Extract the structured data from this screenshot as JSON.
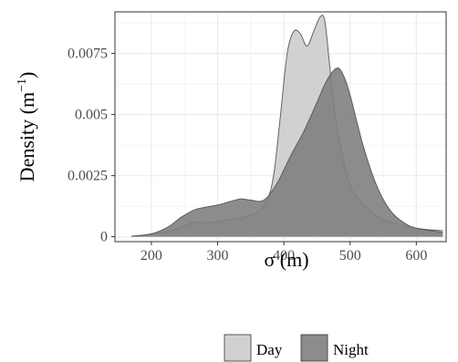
{
  "chart_data": {
    "type": "area",
    "subtype": "density",
    "title": "",
    "xlabel": "σ (m)",
    "ylabel_base": "Density (m",
    "ylabel_exp": "−1",
    "ylabel_close": ")",
    "xlim": [
      145,
      645
    ],
    "ylim": [
      -0.0002,
      0.0092
    ],
    "x_ticks": [
      200,
      300,
      400,
      500,
      600
    ],
    "x_tick_labels": [
      "200",
      "300",
      "400",
      "500",
      "600"
    ],
    "y_ticks": [
      0,
      0.0025,
      0.005,
      0.0075
    ],
    "y_tick_labels": [
      "0",
      "0.0025",
      "0.005",
      "0.0075"
    ],
    "grid": true,
    "legend_position": "bottom",
    "series": [
      {
        "name": "Day",
        "color": "#cccccc",
        "opacity": 0.9,
        "x": [
          170,
          200,
          230,
          250,
          265,
          280,
          300,
          320,
          340,
          360,
          375,
          385,
          395,
          405,
          415,
          425,
          435,
          445,
          455,
          462,
          470,
          480,
          500,
          525,
          550,
          600,
          640
        ],
        "y": [
          2e-05,
          0.0001,
          0.00025,
          0.00045,
          0.0006,
          0.00058,
          0.00062,
          0.0007,
          0.0008,
          0.001,
          0.0015,
          0.0026,
          0.005,
          0.0075,
          0.0084,
          0.0083,
          0.0078,
          0.0084,
          0.009,
          0.0088,
          0.0068,
          0.0045,
          0.0021,
          0.0012,
          0.0007,
          0.00035,
          0.00025
        ]
      },
      {
        "name": "Night",
        "color": "#7f7f7f",
        "opacity": 0.9,
        "x": [
          170,
          200,
          225,
          245,
          265,
          280,
          300,
          320,
          335,
          350,
          370,
          390,
          410,
          430,
          450,
          465,
          480,
          490,
          500,
          520,
          540,
          560,
          580,
          600,
          640
        ],
        "y": [
          2e-05,
          0.00012,
          0.0004,
          0.0008,
          0.0011,
          0.0012,
          0.0013,
          0.00145,
          0.00155,
          0.0015,
          0.0015,
          0.0022,
          0.0033,
          0.0043,
          0.0055,
          0.0064,
          0.0069,
          0.0066,
          0.0058,
          0.0037,
          0.0021,
          0.0011,
          0.0006,
          0.00035,
          0.00018
        ]
      }
    ]
  }
}
